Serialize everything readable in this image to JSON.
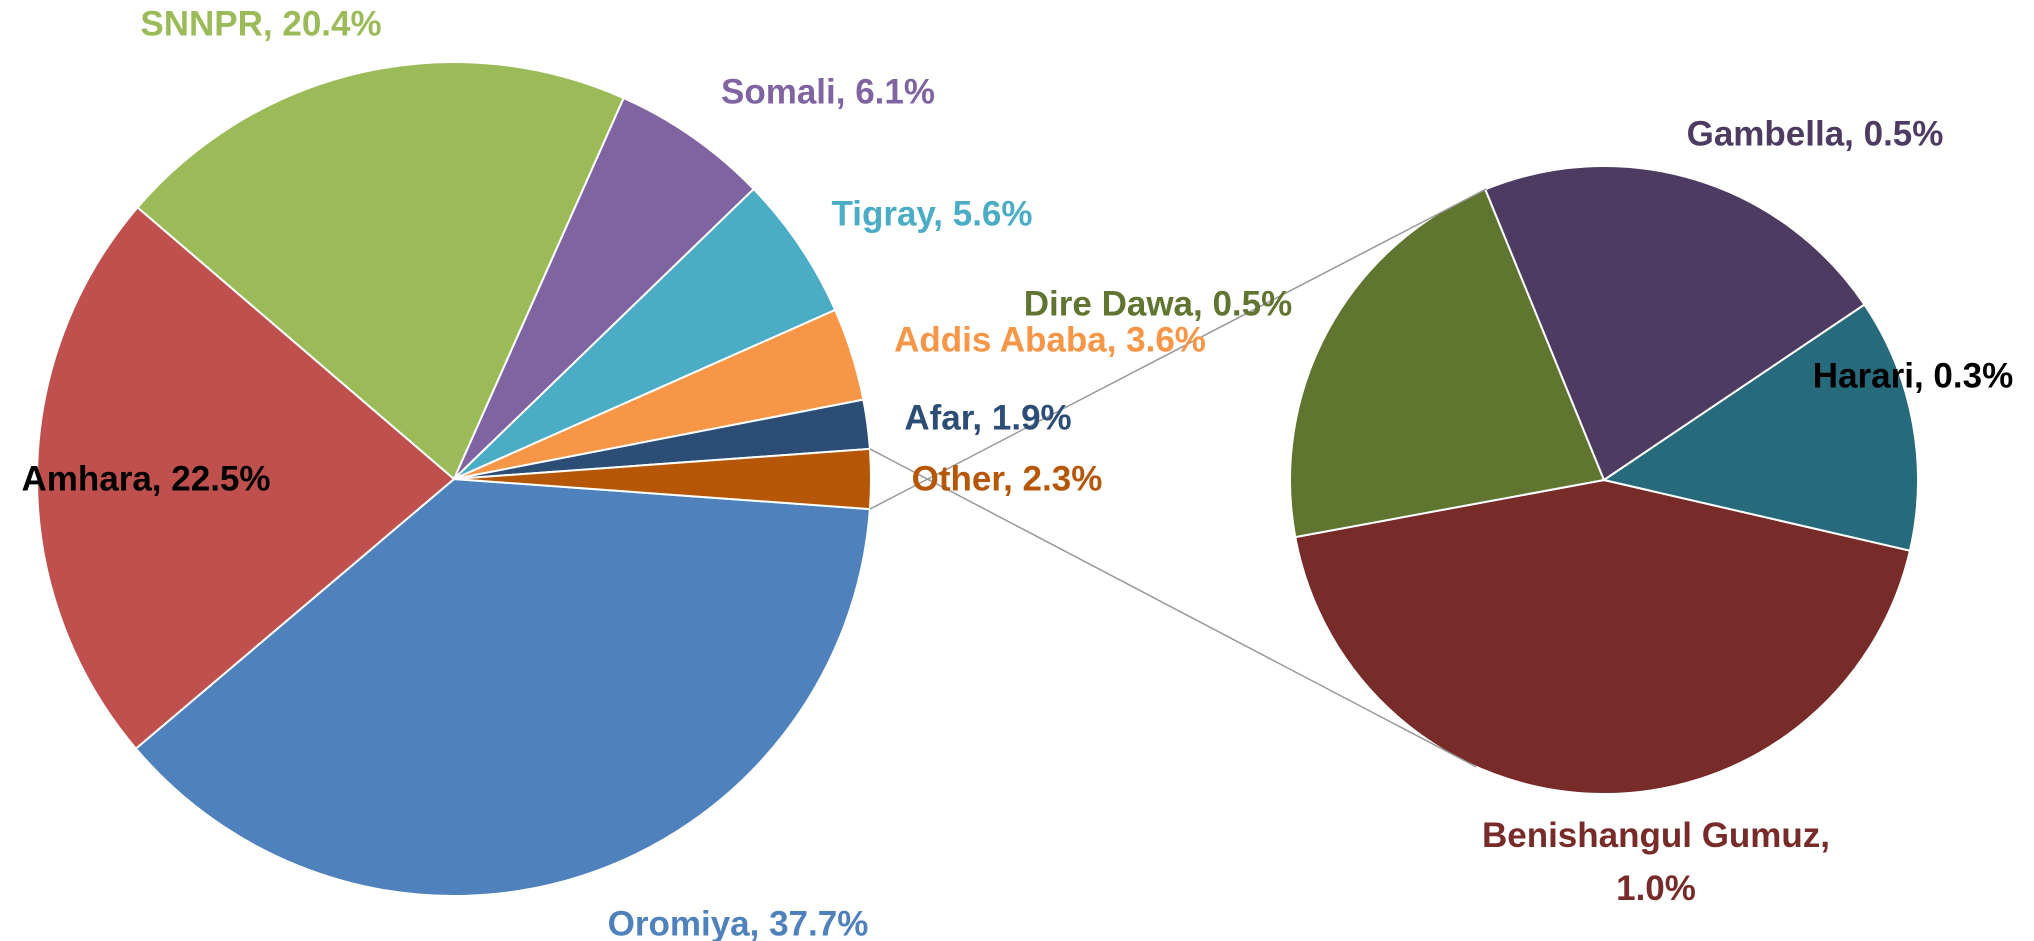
{
  "chart_data": [
    {
      "type": "pie",
      "categories": [
        "Oromiya",
        "Amhara",
        "SNNPR",
        "Somali",
        "Tigray",
        "Addis Ababa",
        "Afar",
        "Other"
      ],
      "values": [
        37.7,
        22.5,
        20.4,
        6.1,
        5.6,
        3.6,
        1.9,
        2.3
      ],
      "value_labels": [
        "Oromiya, 37.7%",
        "Amhara, 22.5%",
        "SNNPR, 20.4%",
        "Somali, 6.1%",
        "Tigray, 5.6%",
        "Addis Ababa, 3.6%",
        "Afar, 1.9%",
        "Other, 2.3%"
      ],
      "colors": [
        "#4f81bd",
        "#c0504d",
        "#9bbb59",
        "#8064a2",
        "#4bacc6",
        "#f79646",
        "#2c4d75",
        "#b65708"
      ],
      "label_colors": [
        "#4f81bd",
        "#000000",
        "#9bbb59",
        "#8064a2",
        "#4bacc6",
        "#f79646",
        "#2c4d75",
        "#b65708"
      ]
    },
    {
      "type": "pie",
      "categories": [
        "Benishangul Gumuz",
        "Dire Dawa",
        "Gambella",
        "Harari"
      ],
      "values": [
        1.0,
        0.5,
        0.5,
        0.3
      ],
      "value_labels": [
        "Benishangul Gumuz, 1.0%",
        "Dire Dawa, 0.5%",
        "Gambella, 0.5%",
        "Harari, 0.3%"
      ],
      "colors": [
        "#772c2a",
        "#5f7530",
        "#4d3b62",
        "#276a7c"
      ],
      "label_colors": [
        "#772c2a",
        "#5f7530",
        "#4d3b62",
        "#000000"
      ]
    }
  ]
}
